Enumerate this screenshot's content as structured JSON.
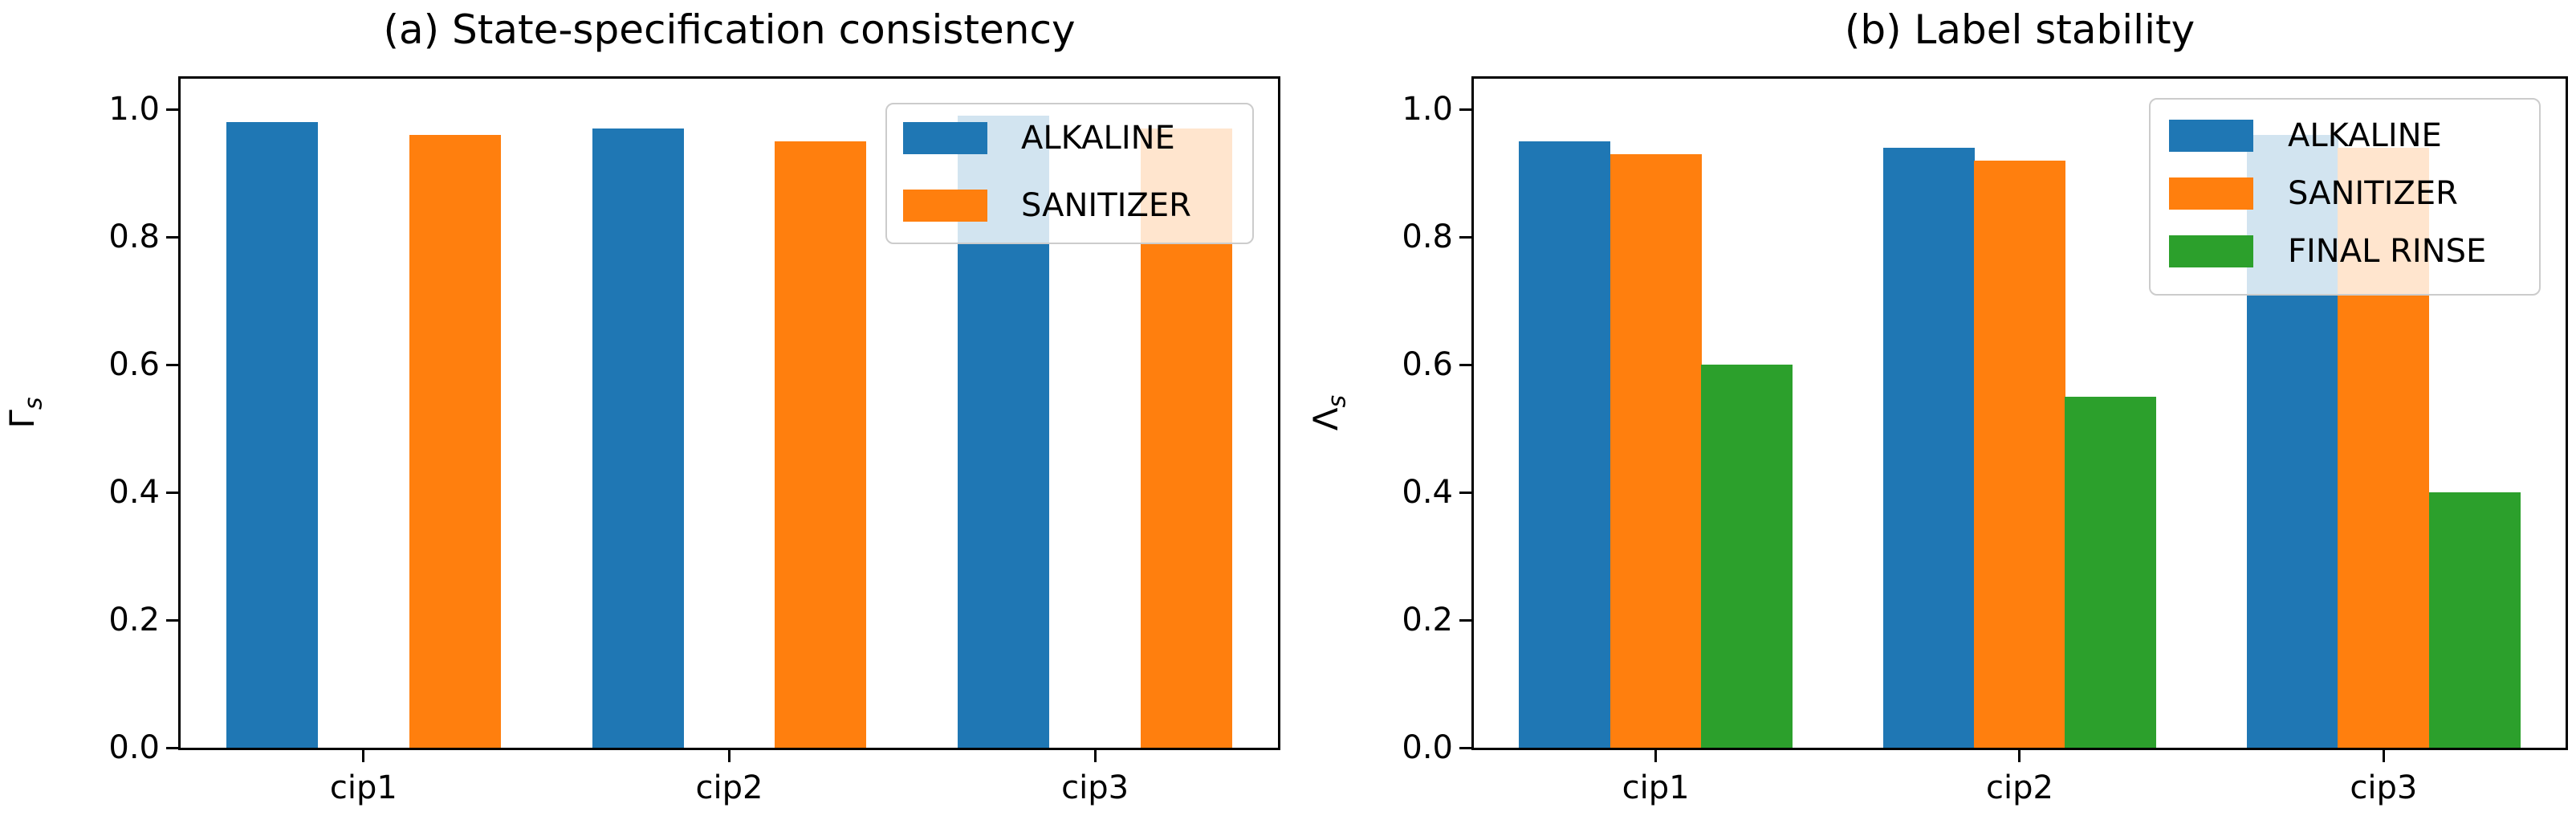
{
  "figure_colors": {
    "alkaline": "#1f77b4",
    "sanitizer": "#ff7f0e",
    "final_rinse": "#2ca02c",
    "legend_edge": "#cccccc",
    "axis": "#000000"
  },
  "chart_data": [
    {
      "id": "a",
      "type": "bar",
      "title": "(a) State-specification consistency",
      "ylabel": "Γ",
      "ylabel_sub": "s",
      "xlabel": "",
      "categories": [
        "cip1",
        "cip2",
        "cip3"
      ],
      "series": [
        {
          "name": "ALKALINE",
          "color": "#1f77b4",
          "values": [
            0.98,
            0.97,
            0.99
          ]
        },
        {
          "name": "SANITIZER",
          "color": "#ff7f0e",
          "values": [
            0.96,
            0.95,
            0.97
          ]
        }
      ],
      "yticks": [
        0.0,
        0.2,
        0.4,
        0.6,
        0.8,
        1.0
      ],
      "ytick_labels": [
        "0.0",
        "0.2",
        "0.4",
        "0.6",
        "0.8",
        "1.0"
      ],
      "ylim": [
        0,
        1.048
      ],
      "xlim": [
        -0.5,
        2.5
      ],
      "grid": false,
      "legend": {
        "position": "upper right",
        "labels": [
          "ALKALINE",
          "SANITIZER"
        ]
      }
    },
    {
      "id": "b",
      "type": "bar",
      "title": "(b) Label stability",
      "ylabel": "Λ",
      "ylabel_sub": "s",
      "xlabel": "",
      "categories": [
        "cip1",
        "cip2",
        "cip3"
      ],
      "series": [
        {
          "name": "ALKALINE",
          "color": "#1f77b4",
          "values": [
            0.95,
            0.94,
            0.96
          ]
        },
        {
          "name": "SANITIZER",
          "color": "#ff7f0e",
          "values": [
            0.93,
            0.92,
            0.94
          ]
        },
        {
          "name": "FINAL RINSE",
          "color": "#2ca02c",
          "values": [
            0.6,
            0.55,
            0.4
          ]
        }
      ],
      "yticks": [
        0.0,
        0.2,
        0.4,
        0.6,
        0.8,
        1.0
      ],
      "ytick_labels": [
        "0.0",
        "0.2",
        "0.4",
        "0.6",
        "0.8",
        "1.0"
      ],
      "ylim": [
        0,
        1.048
      ],
      "xlim": [
        -0.5,
        2.5
      ],
      "grid": false,
      "legend": {
        "position": "upper right",
        "labels": [
          "ALKALINE",
          "SANITIZER",
          "FINAL RINSE"
        ]
      }
    }
  ]
}
